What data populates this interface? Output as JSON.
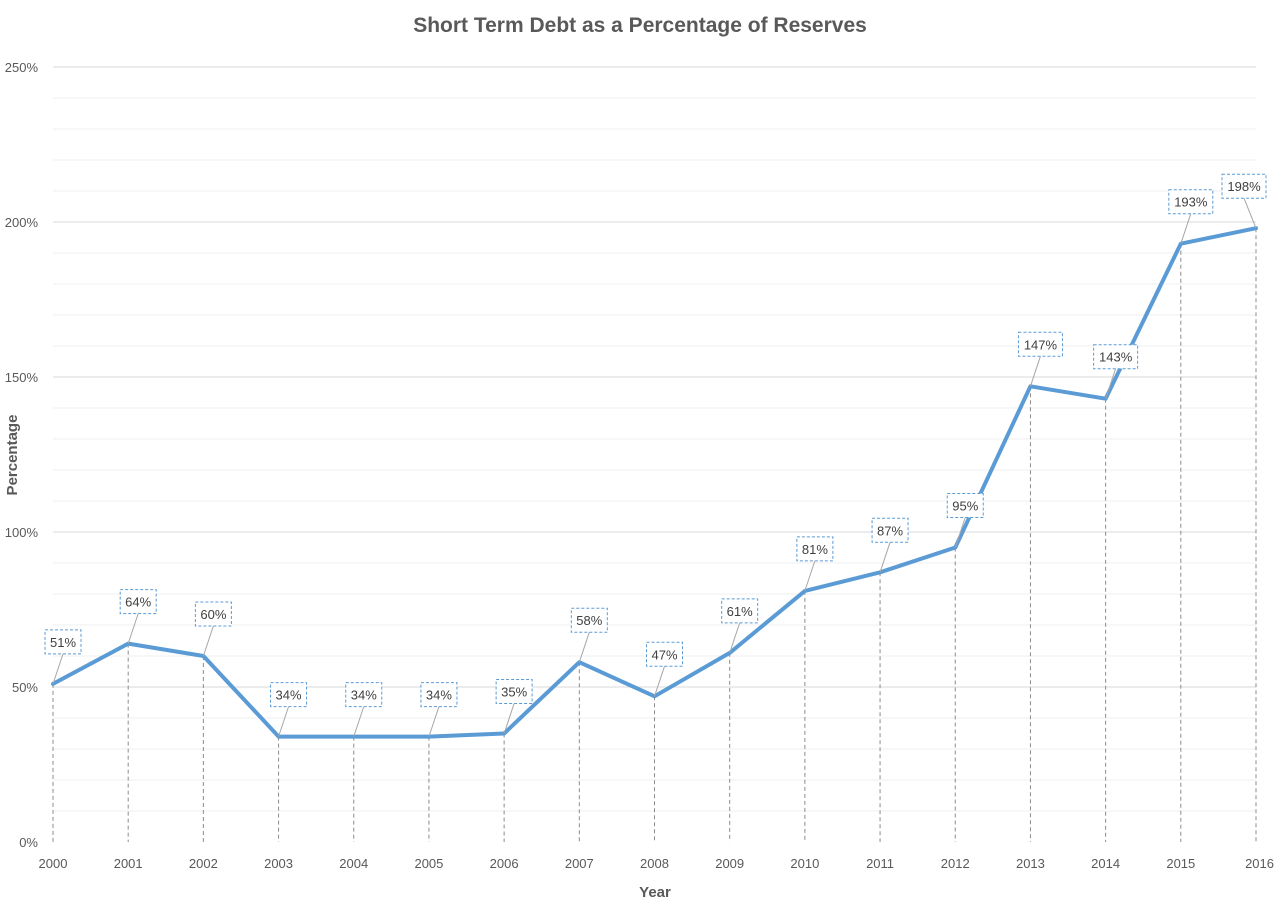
{
  "chart_data": {
    "type": "line",
    "title": "Short Term Debt as a Percentage of Reserves",
    "xlabel": "Year",
    "ylabel": "Percentage",
    "ylim": [
      0,
      250
    ],
    "y_tick_labels": [
      "0%",
      "50%",
      "100%",
      "150%",
      "200%",
      "250%"
    ],
    "y_tick_values": [
      0,
      50,
      100,
      150,
      200,
      250
    ],
    "grid": true,
    "legend": "none",
    "series_color": "#5B9BD5",
    "categories": [
      "2000",
      "2001",
      "2002",
      "2003",
      "2004",
      "2005",
      "2006",
      "2007",
      "2008",
      "2009",
      "2010",
      "2011",
      "2012",
      "2013",
      "2014",
      "2015",
      "2016"
    ],
    "series": [
      {
        "values": [
          51,
          64,
          60,
          34,
          34,
          34,
          35,
          58,
          47,
          61,
          81,
          87,
          95,
          147,
          143,
          193,
          198
        ],
        "data_labels": [
          "51%",
          "64%",
          "60%",
          "34%",
          "34%",
          "34%",
          "35%",
          "58%",
          "47%",
          "61%",
          "81%",
          "87%",
          "95%",
          "147%",
          "143%",
          "193%",
          "198%"
        ]
      }
    ]
  }
}
